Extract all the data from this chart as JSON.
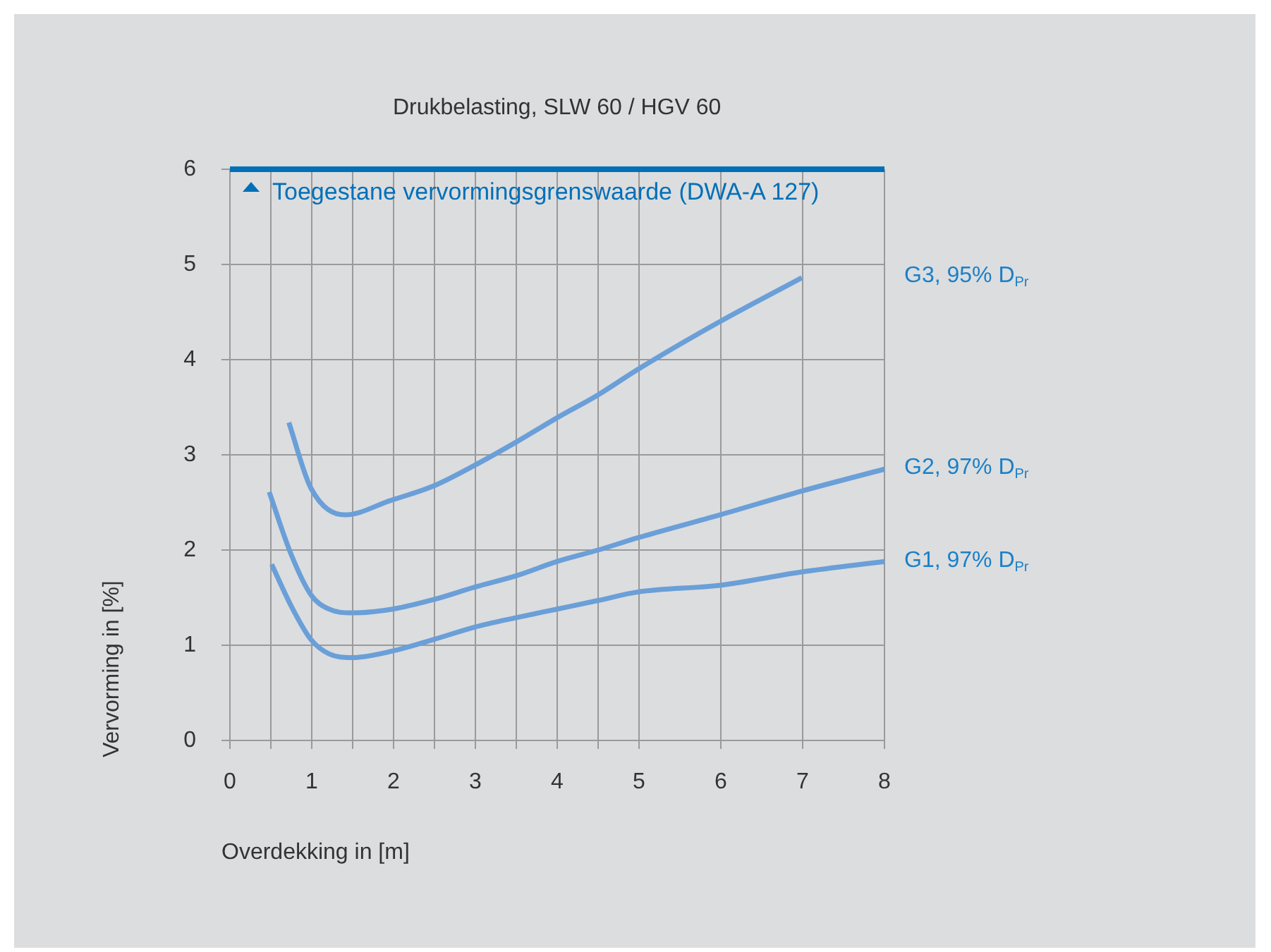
{
  "chart_data": {
    "type": "line",
    "title": "Drukbelasting, SLW 60 / HGV 60",
    "xlabel": "Overdekking in [m]",
    "ylabel": "Vervorming in [%]",
    "xlim": [
      0,
      8
    ],
    "ylim": [
      0,
      6
    ],
    "xticks": [
      0,
      {
        "value": 0.5,
        "label": null
      },
      1,
      {
        "value": 1.5,
        "label": null
      },
      2,
      {
        "value": 2.5,
        "label": null
      },
      3,
      {
        "value": 3.5,
        "label": null
      },
      4,
      {
        "value": 4.5,
        "label": null
      },
      5,
      6,
      7,
      8
    ],
    "yticks": [
      0,
      1,
      2,
      3,
      4,
      5,
      6
    ],
    "grid": true,
    "marker": "none",
    "line_style": "solid",
    "ref_lines": [
      {
        "axis": "y",
        "value": 6,
        "label": "Toegestane vervormingsgrenswaarde (DWA-A 127)",
        "color": "#0070b8"
      }
    ],
    "series": [
      {
        "name": "G3, 95% D$_{Pr}$",
        "color": "#6a9fd8",
        "x": [
          0.72,
          0.99,
          1.41,
          1.96,
          2.48,
          2.99,
          3.51,
          4.0,
          4.5,
          4.99,
          5.99,
          6.99
        ],
        "values": [
          3.34,
          2.65,
          2.37,
          2.52,
          2.67,
          2.89,
          3.14,
          3.39,
          3.63,
          3.9,
          4.4,
          4.86
        ]
      },
      {
        "name": "G2, 97% D$_{Pr}$",
        "color": "#6a9fd8",
        "x": [
          0.48,
          0.75,
          0.99,
          1.21,
          1.49,
          1.99,
          2.49,
          2.99,
          3.5,
          4.0,
          4.5,
          4.99,
          5.99,
          6.99,
          8
        ],
        "values": [
          2.61,
          1.95,
          1.53,
          1.38,
          1.34,
          1.38,
          1.48,
          1.61,
          1.73,
          1.88,
          2.0,
          2.13,
          2.37,
          2.62,
          2.85
        ]
      },
      {
        "name": "G1, 97% D$_{Pr}$",
        "color": "#6a9fd8",
        "x": [
          0.51,
          0.75,
          0.99,
          1.21,
          1.49,
          1.99,
          2.49,
          2.99,
          3.5,
          4.0,
          4.5,
          4.99,
          5.99,
          6.99,
          8
        ],
        "values": [
          1.85,
          1.41,
          1.06,
          0.91,
          0.87,
          0.94,
          1.06,
          1.19,
          1.29,
          1.38,
          1.47,
          1.56,
          1.63,
          1.77,
          1.88
        ]
      }
    ]
  }
}
